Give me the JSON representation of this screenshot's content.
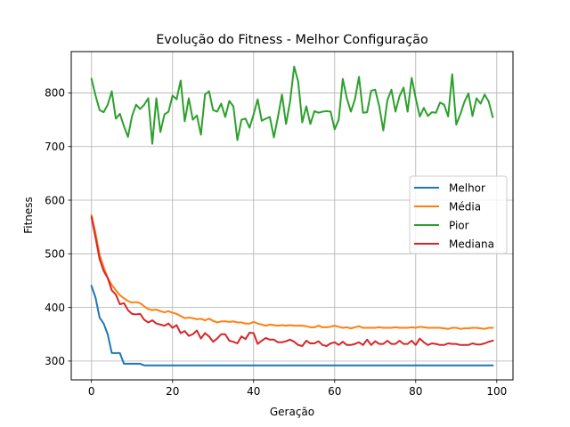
{
  "chart_data": {
    "type": "line",
    "title": "Evolução do Fitness - Melhor Configuração",
    "xlabel": "Geração",
    "ylabel": "Fitness",
    "xlim": [
      -5,
      104
    ],
    "ylim": [
      265,
      877
    ],
    "xticks": [
      0,
      20,
      40,
      60,
      80,
      100
    ],
    "yticks": [
      300,
      400,
      500,
      600,
      700,
      800
    ],
    "grid": true,
    "legend_position": "center-right",
    "series": [
      {
        "name": "Melhor",
        "color": "#1f77b4",
        "values": [
          440,
          418,
          381,
          370,
          350,
          315,
          315,
          315,
          295,
          295,
          295,
          295,
          295,
          292,
          292,
          292,
          292,
          292,
          292,
          292,
          292,
          292,
          292,
          292,
          292,
          292,
          292,
          292,
          292,
          292,
          292,
          292,
          292,
          292,
          292,
          292,
          292,
          292,
          292,
          292,
          292,
          292,
          292,
          292,
          292,
          292,
          292,
          292,
          292,
          292,
          292,
          292,
          292,
          292,
          292,
          292,
          292,
          292,
          292,
          292,
          292,
          292,
          292,
          292,
          292,
          292,
          292,
          292,
          292,
          292,
          292,
          292,
          292,
          292,
          292,
          292,
          292,
          292,
          292,
          292,
          292,
          292,
          292,
          292,
          292,
          292,
          292,
          292,
          292,
          292,
          292,
          292,
          292,
          292,
          292,
          292,
          292,
          292,
          292,
          292
        ]
      },
      {
        "name": "Média",
        "color": "#ff7f0e",
        "values": [
          572,
          538,
          498,
          475,
          455,
          442,
          432,
          423,
          417,
          412,
          409,
          410,
          408,
          402,
          397,
          395,
          396,
          393,
          391,
          393,
          390,
          388,
          384,
          380,
          381,
          380,
          378,
          379,
          376,
          379,
          375,
          372,
          374,
          374,
          373,
          374,
          372,
          372,
          370,
          370,
          373,
          370,
          368,
          366,
          368,
          367,
          366,
          367,
          366,
          367,
          366,
          366,
          366,
          365,
          363,
          363,
          366,
          363,
          363,
          364,
          366,
          364,
          362,
          363,
          361,
          363,
          365,
          362,
          362,
          362,
          362,
          363,
          362,
          362,
          362,
          363,
          362,
          362,
          362,
          363,
          362,
          364,
          363,
          362,
          362,
          362,
          362,
          361,
          360,
          362,
          362,
          360,
          361,
          361,
          362,
          362,
          361,
          360,
          362,
          362
        ]
      },
      {
        "name": "Pior",
        "color": "#2ca02c",
        "values": [
          826,
          795,
          768,
          764,
          778,
          803,
          752,
          761,
          738,
          718,
          757,
          778,
          770,
          778,
          790,
          705,
          790,
          727,
          760,
          765,
          795,
          788,
          823,
          747,
          790,
          750,
          758,
          722,
          797,
          803,
          768,
          765,
          780,
          755,
          785,
          775,
          712,
          750,
          752,
          735,
          760,
          788,
          748,
          752,
          755,
          717,
          755,
          797,
          742,
          784,
          849,
          821,
          745,
          775,
          742,
          766,
          763,
          765,
          766,
          765,
          732,
          750,
          826,
          790,
          765,
          788,
          830,
          763,
          764,
          804,
          806,
          775,
          730,
          786,
          806,
          765,
          794,
          810,
          765,
          828,
          790,
          756,
          772,
          757,
          764,
          763,
          782,
          778,
          756,
          835,
          741,
          760,
          783,
          799,
          757,
          790,
          780,
          797,
          784,
          755
        ]
      },
      {
        "name": "Mediana",
        "color": "#d62728",
        "values": [
          568,
          530,
          490,
          468,
          455,
          432,
          424,
          406,
          408,
          395,
          388,
          387,
          388,
          377,
          372,
          376,
          370,
          368,
          366,
          370,
          362,
          367,
          352,
          356,
          347,
          350,
          357,
          342,
          352,
          346,
          336,
          342,
          350,
          350,
          338,
          336,
          333,
          346,
          341,
          353,
          352,
          332,
          338,
          343,
          340,
          340,
          335,
          335,
          337,
          340,
          336,
          330,
          328,
          338,
          333,
          333,
          337,
          330,
          328,
          333,
          335,
          330,
          336,
          330,
          330,
          332,
          335,
          330,
          340,
          330,
          337,
          332,
          332,
          338,
          332,
          332,
          338,
          332,
          332,
          338,
          330,
          342,
          335,
          330,
          333,
          332,
          330,
          330,
          333,
          332,
          332,
          330,
          330,
          330,
          333,
          331,
          331,
          333,
          336,
          338
        ]
      }
    ]
  }
}
